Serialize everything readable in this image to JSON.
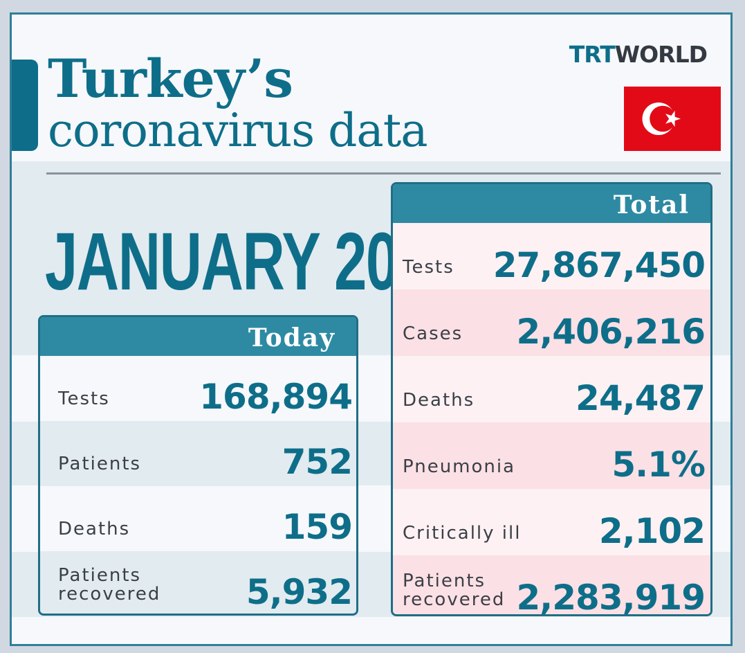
{
  "header": {
    "title_line1": "Turkey’s",
    "title_line2": "coronavirus data",
    "logo_trt": "TRT",
    "logo_world": "WORLD",
    "date": "JANUARY 20"
  },
  "colors": {
    "brand_teal": "#0e6e89",
    "flag_red": "#e30a17",
    "total_row_pink": "#fbe0e5",
    "band_light_blue": "#e2ebf0"
  },
  "today": {
    "heading": "Today",
    "rows": [
      {
        "label": "Tests",
        "value": "168,894"
      },
      {
        "label": "Patients",
        "value": "752"
      },
      {
        "label": "Deaths",
        "value": "159"
      },
      {
        "label": "Patients\nrecovered",
        "value": "5,932"
      }
    ]
  },
  "total": {
    "heading": "Total",
    "rows": [
      {
        "label": "Tests",
        "value": "27,867,450"
      },
      {
        "label": "Cases",
        "value": "2,406,216"
      },
      {
        "label": "Deaths",
        "value": "24,487"
      },
      {
        "label": "Pneumonia",
        "value": "5.1%"
      },
      {
        "label": "Critically ill",
        "value": "2,102"
      },
      {
        "label": "Patients\nrecovered",
        "value": "2,283,919"
      }
    ]
  }
}
